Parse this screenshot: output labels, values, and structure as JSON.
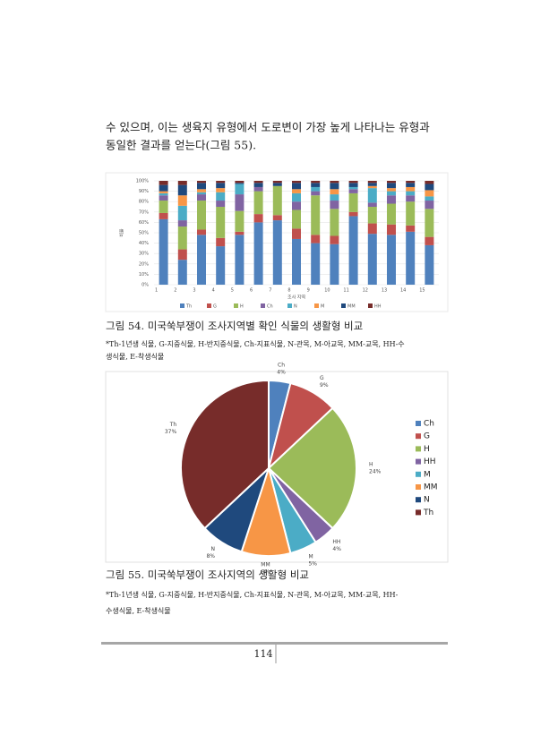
{
  "body_lines": [
    "수 있으며, 이는 생육지 유형에서 도로변이 가장 높게 나타나는 유형과",
    "동일한 결과를 얻는다(그림 55)."
  ],
  "chart_data": [
    {
      "type": "bar",
      "stacked": true,
      "x_label": "조사 지역",
      "y_label": "비율",
      "categories": [
        "1",
        "2",
        "3",
        "4",
        "5",
        "6",
        "7",
        "8",
        "9",
        "10",
        "11",
        "12",
        "13",
        "14",
        "15"
      ],
      "series": [
        {
          "name": "Th",
          "color": "#4f81bd",
          "values": [
            63,
            24,
            48,
            37,
            48,
            60,
            62,
            44,
            40,
            39,
            66,
            49,
            48,
            51,
            38
          ]
        },
        {
          "name": "G",
          "color": "#c0504d",
          "values": [
            6,
            10,
            5,
            8,
            3,
            8,
            5,
            10,
            8,
            8,
            4,
            10,
            10,
            6,
            8
          ]
        },
        {
          "name": "H",
          "color": "#9bbb59",
          "values": [
            12,
            22,
            28,
            30,
            20,
            22,
            28,
            18,
            38,
            26,
            18,
            16,
            20,
            23,
            27
          ]
        },
        {
          "name": "Ch",
          "color": "#8064a2",
          "values": [
            5,
            6,
            6,
            6,
            16,
            4,
            0,
            8,
            4,
            8,
            4,
            4,
            8,
            6,
            8
          ]
        },
        {
          "name": "N",
          "color": "#4bacc6",
          "values": [
            2,
            14,
            2,
            8,
            10,
            0,
            0,
            8,
            4,
            6,
            2,
            14,
            4,
            4,
            4
          ]
        },
        {
          "name": "M",
          "color": "#f79646",
          "values": [
            2,
            10,
            3,
            4,
            0,
            0,
            0,
            4,
            0,
            5,
            0,
            2,
            3,
            4,
            6
          ]
        },
        {
          "name": "MM",
          "color": "#1f497d",
          "values": [
            6,
            10,
            6,
            5,
            1,
            4,
            3,
            6,
            4,
            6,
            4,
            3,
            5,
            4,
            6
          ]
        },
        {
          "name": "HH",
          "color": "#772c2a",
          "values": [
            4,
            4,
            2,
            2,
            2,
            2,
            2,
            2,
            2,
            2,
            2,
            2,
            2,
            2,
            3
          ]
        }
      ],
      "ylim": [
        0,
        100
      ],
      "yticks": [
        {
          "value": 0,
          "label": "0%"
        },
        {
          "value": 10,
          "label": "10%"
        },
        {
          "value": 20,
          "label": "20%"
        },
        {
          "value": 30,
          "label": "30%"
        },
        {
          "value": 40,
          "label": "40%"
        },
        {
          "value": 50,
          "label": "50%"
        },
        {
          "value": 60,
          "label": "60%"
        },
        {
          "value": 70,
          "label": "70%"
        },
        {
          "value": 80,
          "label": "80%"
        },
        {
          "value": 90,
          "label": "90%"
        },
        {
          "value": 100,
          "label": "100%"
        }
      ],
      "grid": true,
      "legend": "bottom"
    },
    {
      "type": "pie",
      "categories": [
        "Ch",
        "G",
        "H",
        "HH",
        "M",
        "MM",
        "N",
        "Th"
      ],
      "values": [
        4,
        9,
        24,
        4,
        5,
        9,
        8,
        37
      ],
      "value_labels": [
        "4%",
        "9%",
        "24%",
        "4%",
        "5%",
        "9%",
        "8%",
        "37%"
      ],
      "colors": [
        "#4f81bd",
        "#c0504d",
        "#9bbb59",
        "#8064a2",
        "#4bacc6",
        "#f79646",
        "#1f497d",
        "#772c2a"
      ],
      "legend": "right"
    }
  ],
  "captions": [
    "그림 54. 미국쑥부쟁이 조사지역별 확인 식물의 생활형 비교",
    "그림 55. 미국쑥부쟁이 조사지역의 생활형 비교"
  ],
  "notes": [
    [
      "*Th-1년생 식물, G-지중식물, H-반지중식물, Ch-지표식물, N-관목, M-아교목, MM-교목, HH-수",
      "생식물, E-착생식물"
    ],
    [
      "*Th-1년생 식물, G-지중식물, H-반지중식물, Ch-지표식물, N-관목, M-아교목, MM-교목, HH-",
      "수생식물, E-착생식물"
    ]
  ],
  "page_number": "114"
}
